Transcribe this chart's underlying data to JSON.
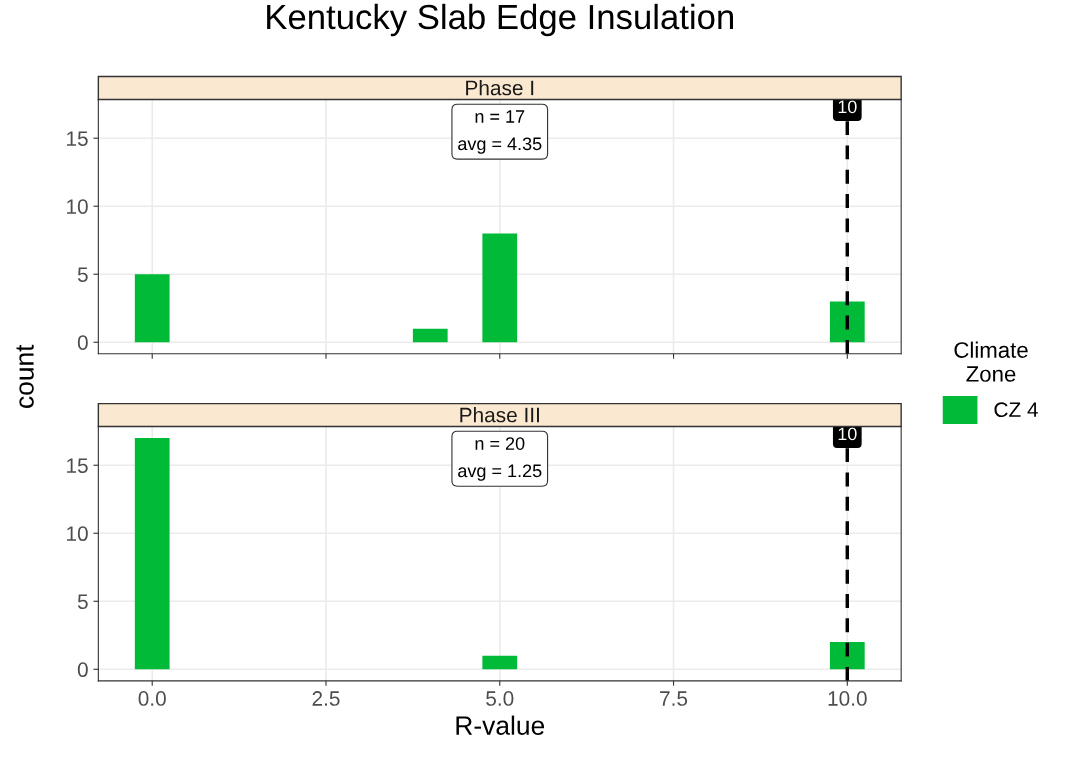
{
  "chart_data": [
    {
      "type": "histogram",
      "title": "Kentucky Slab Edge Insulation",
      "subtitle": "Phase I",
      "ylabel": "count",
      "legend_title": "Climate\nZone",
      "legend": "right",
      "bins": [
        -0.25,
        0.25,
        0.75,
        1.25,
        1.75,
        2.25,
        2.75,
        3.25,
        3.75,
        4.25,
        4.75,
        5.25,
        5.75,
        6.25,
        6.75,
        7.25,
        7.75,
        8.25,
        8.75,
        9.25,
        9.75,
        10.25
      ],
      "series": [
        {
          "name": "CZ 4",
          "color": "#00ba38",
          "values": [
            5,
            0,
            0,
            0,
            0,
            0,
            0,
            0,
            1,
            0,
            8,
            0,
            0,
            0,
            0,
            0,
            0,
            0,
            0,
            0,
            3
          ]
        }
      ],
      "xlim": [
        -0.775,
        10.775
      ],
      "xticks": [
        0.0,
        2.5,
        5.0,
        7.5,
        10.0
      ],
      "ylim": [
        -0.85,
        17.85
      ],
      "yticks": [
        0,
        5,
        10,
        15
      ],
      "grid": true,
      "tick_labels": "y",
      "ref_lines": [
        {
          "axis": "x",
          "value": 10,
          "label": "10",
          "color": "#000000",
          "line_style": "dashed"
        }
      ],
      "annotations": [
        "n = 17\navg = 4.35"
      ]
    },
    {
      "type": "histogram",
      "subtitle": "Phase III",
      "xlabel": "R-value",
      "bins": [
        -0.25,
        0.25,
        0.75,
        1.25,
        1.75,
        2.25,
        2.75,
        3.25,
        3.75,
        4.25,
        4.75,
        5.25,
        5.75,
        6.25,
        6.75,
        7.25,
        7.75,
        8.25,
        8.75,
        9.25,
        9.75,
        10.25
      ],
      "series": [
        {
          "name": "CZ 4",
          "color": "#00ba38",
          "values": [
            17,
            0,
            0,
            0,
            0,
            0,
            0,
            0,
            0,
            0,
            1,
            0,
            0,
            0,
            0,
            0,
            0,
            0,
            0,
            0,
            2
          ]
        }
      ],
      "xlim": [
        -0.775,
        10.775
      ],
      "xticks": [
        {
          "value": 0.0,
          "label": "0.0"
        },
        2.5,
        {
          "value": 5.0,
          "label": "5.0"
        },
        7.5,
        {
          "value": 10.0,
          "label": "10.0"
        }
      ],
      "ylim": [
        -0.85,
        17.85
      ],
      "yticks": [
        0,
        5,
        10,
        15
      ],
      "grid": true,
      "ref_lines": [
        {
          "axis": "x",
          "value": 10,
          "label": "10",
          "color": "#000000",
          "line_style": "dashed"
        }
      ],
      "annotations": [
        "n = 20\navg = 1.25"
      ]
    }
  ]
}
